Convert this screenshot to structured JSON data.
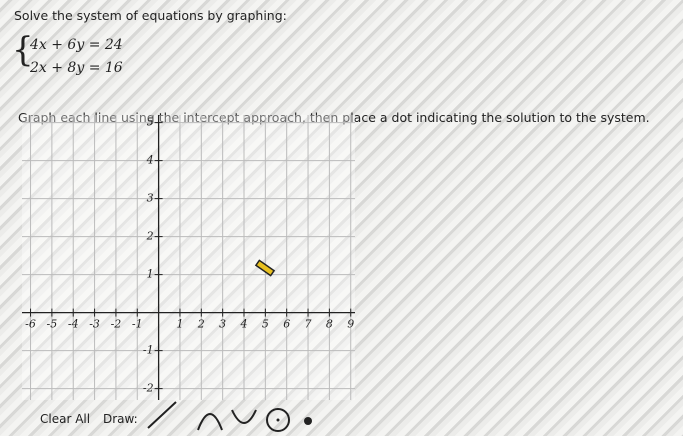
{
  "prompt": "Solve the system of equations by graphing:",
  "equations": [
    "4x + 6y = 24",
    "2x + 8y = 16"
  ],
  "instruction": "Graph each line using the intercept approach, then place a dot indicating the solution to the system.",
  "graph": {
    "xlim": [
      -6.4,
      9.2
    ],
    "ylim": [
      -2.3,
      5.2
    ],
    "xticks": [
      -6,
      -5,
      -4,
      -3,
      -2,
      -1,
      1,
      2,
      3,
      4,
      5,
      6,
      7,
      8,
      9
    ],
    "yticks": [
      -2,
      -1,
      1,
      2,
      3,
      4,
      5
    ]
  },
  "toolbar": {
    "clear": "Clear All",
    "draw": "Draw:"
  }
}
